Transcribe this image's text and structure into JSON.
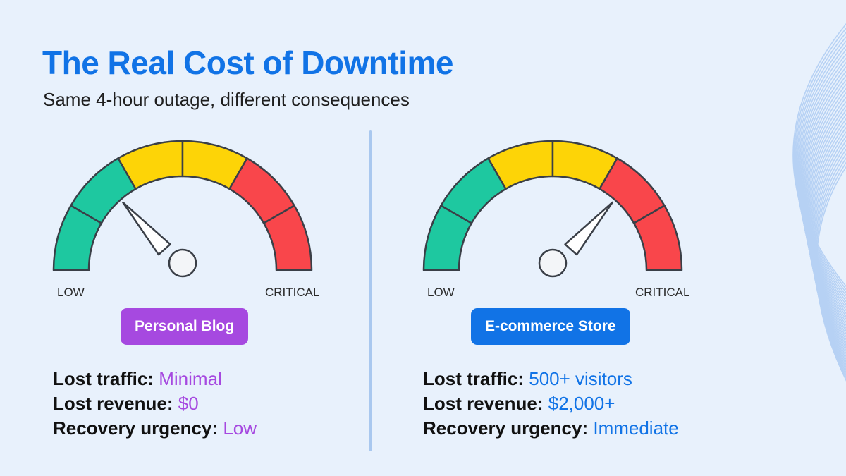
{
  "header": {
    "title": "The Real Cost of Downtime",
    "subtitle": "Same 4-hour outage, different consequences"
  },
  "scale": {
    "low": "LOW",
    "critical": "CRITICAL"
  },
  "colors": {
    "title": "#1173e6",
    "green": "#1ec8a0",
    "yellow": "#fdd407",
    "red": "#f9464b",
    "purple": "#a649e0",
    "blue": "#1173e6"
  },
  "panels": [
    {
      "badge": "Personal Blog",
      "accent": "#a649e0",
      "needle_fraction": 0.27,
      "stats": [
        {
          "label": "Lost traffic:",
          "value": "Minimal"
        },
        {
          "label": "Lost revenue:",
          "value": "$0"
        },
        {
          "label": "Recovery urgency:",
          "value": "Low"
        }
      ]
    },
    {
      "badge": "E-commerce Store",
      "accent": "#1173e6",
      "needle_fraction": 0.73,
      "stats": [
        {
          "label": "Lost traffic:",
          "value": "500+ visitors"
        },
        {
          "label": "Lost revenue:",
          "value": "$2,000+"
        },
        {
          "label": "Recovery urgency:",
          "value": "Immediate"
        }
      ]
    }
  ]
}
